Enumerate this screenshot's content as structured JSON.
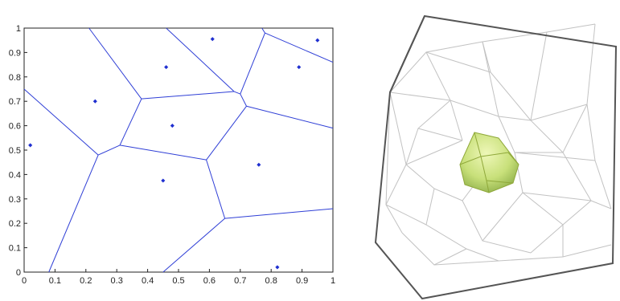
{
  "figure": {
    "left_panel": {
      "kind": "2d-voronoi-plot",
      "xlim": [
        0,
        1
      ],
      "ylim": [
        0,
        1
      ],
      "x_ticks": [
        "0",
        "0.1",
        "0.2",
        "0.3",
        "0.4",
        "0.5",
        "0.6",
        "0.7",
        "0.8",
        "0.9",
        "1"
      ],
      "y_ticks": [
        "0",
        "0.1",
        "0.2",
        "0.3",
        "0.4",
        "0.5",
        "0.6",
        "0.7",
        "0.8",
        "0.9",
        "1"
      ],
      "edge_color": "#2f3fd6",
      "point_color": "#1f2fd0",
      "points": [
        [
          0.02,
          0.52
        ],
        [
          0.23,
          0.7
        ],
        [
          0.46,
          0.84
        ],
        [
          0.61,
          0.955
        ],
        [
          0.95,
          0.95
        ],
        [
          0.89,
          0.84
        ],
        [
          0.48,
          0.6
        ],
        [
          0.45,
          0.375
        ],
        [
          0.76,
          0.44
        ],
        [
          0.82,
          0.02
        ]
      ],
      "edges": [
        [
          [
            0.0,
            0.75
          ],
          [
            0.24,
            0.48
          ]
        ],
        [
          [
            0.24,
            0.48
          ],
          [
            0.08,
            0.0
          ]
        ],
        [
          [
            0.24,
            0.48
          ],
          [
            0.31,
            0.52
          ]
        ],
        [
          [
            0.31,
            0.52
          ],
          [
            0.38,
            0.71
          ]
        ],
        [
          [
            0.38,
            0.71
          ],
          [
            0.21,
            1.0
          ]
        ],
        [
          [
            0.38,
            0.71
          ],
          [
            0.68,
            0.74
          ]
        ],
        [
          [
            0.68,
            0.74
          ],
          [
            0.46,
            1.0
          ]
        ],
        [
          [
            0.68,
            0.74
          ],
          [
            0.7,
            0.73
          ]
        ],
        [
          [
            0.7,
            0.73
          ],
          [
            0.78,
            0.98
          ]
        ],
        [
          [
            0.78,
            0.98
          ],
          [
            0.77,
            1.0
          ]
        ],
        [
          [
            0.78,
            0.98
          ],
          [
            1.0,
            0.86
          ]
        ],
        [
          [
            0.7,
            0.73
          ],
          [
            0.72,
            0.68
          ]
        ],
        [
          [
            0.72,
            0.68
          ],
          [
            1.0,
            0.59
          ]
        ],
        [
          [
            0.72,
            0.68
          ],
          [
            0.59,
            0.46
          ]
        ],
        [
          [
            0.31,
            0.52
          ],
          [
            0.59,
            0.46
          ]
        ],
        [
          [
            0.59,
            0.46
          ],
          [
            0.65,
            0.22
          ]
        ],
        [
          [
            0.65,
            0.22
          ],
          [
            1.0,
            0.26
          ]
        ],
        [
          [
            0.65,
            0.22
          ],
          [
            0.45,
            0.0
          ]
        ]
      ]
    },
    "right_panel": {
      "kind": "3d-voronoi-render",
      "frame_color": "#555555",
      "wire_color": "#b9b9b9",
      "cell_fill": "#c8e07a",
      "cell_stroke": "#8fa83a"
    }
  }
}
